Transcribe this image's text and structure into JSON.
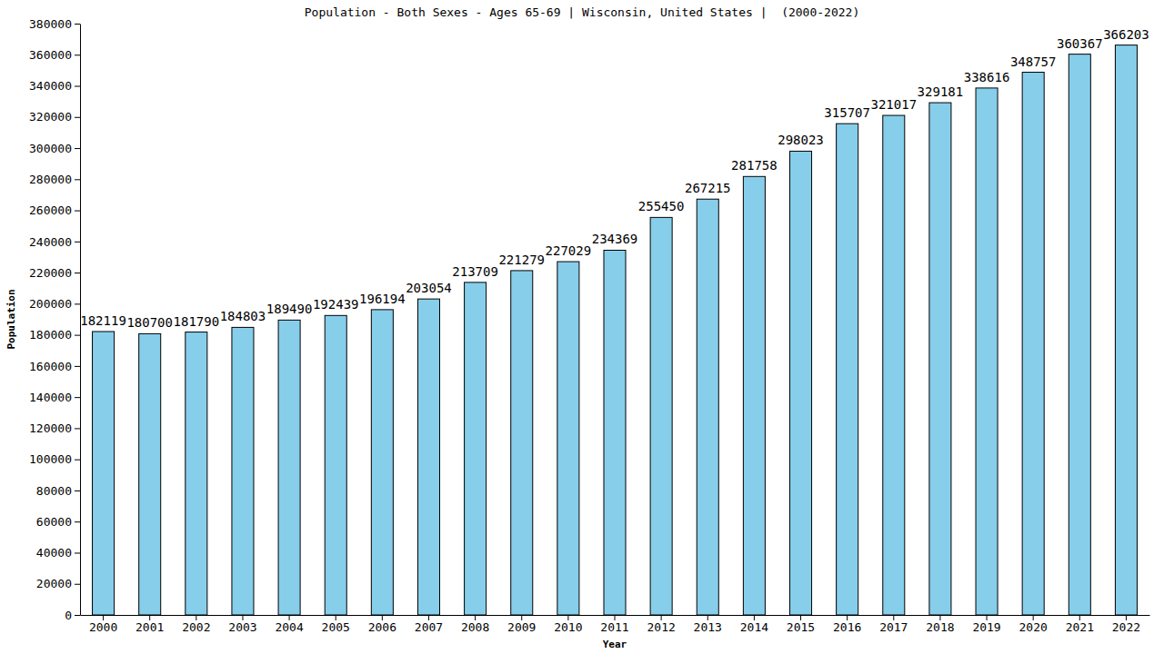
{
  "chart_data": {
    "type": "bar",
    "title": "Population - Both Sexes - Ages 65-69 | Wisconsin, United States |  (2000-2022)",
    "x_label": "Year",
    "y_label": "Population",
    "categories": [
      "2000",
      "2001",
      "2002",
      "2003",
      "2004",
      "2005",
      "2006",
      "2007",
      "2008",
      "2009",
      "2010",
      "2011",
      "2012",
      "2013",
      "2014",
      "2015",
      "2016",
      "2017",
      "2018",
      "2019",
      "2020",
      "2021",
      "2022"
    ],
    "values": [
      182119,
      180700,
      181790,
      184803,
      189490,
      192439,
      196194,
      203054,
      213709,
      221279,
      227029,
      234369,
      255450,
      267215,
      281758,
      298023,
      315707,
      321017,
      329181,
      338616,
      348757,
      360367,
      366203
    ],
    "color": "#87ceeb",
    "ylim": [
      0,
      380000
    ],
    "yticks": [
      0,
      20000,
      40000,
      60000,
      80000,
      100000,
      120000,
      140000,
      160000,
      180000,
      200000,
      220000,
      240000,
      260000,
      280000,
      300000,
      320000,
      340000,
      360000,
      380000
    ],
    "grid": false,
    "data_labels": true
  }
}
